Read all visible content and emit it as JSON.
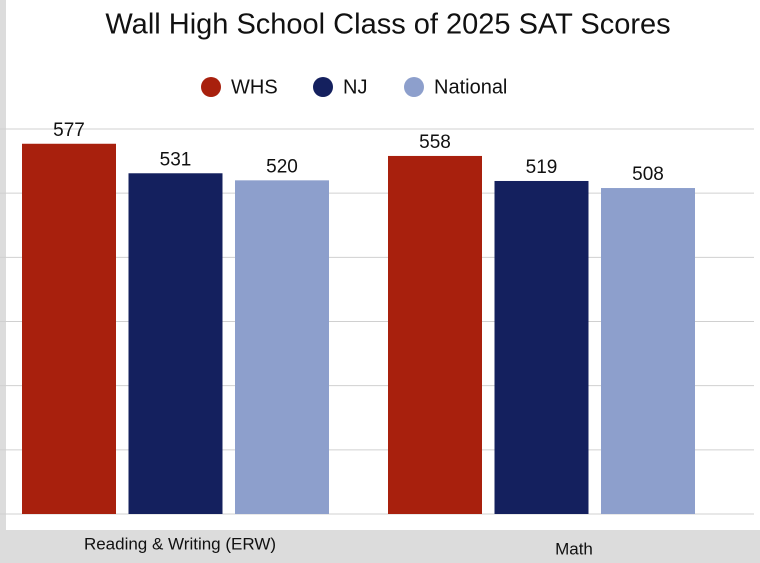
{
  "chart_data": {
    "type": "bar",
    "title": "Wall High School Class of 2025 SAT Scores",
    "categories": [
      "Reading & Writing (ERW)",
      "Math"
    ],
    "series": [
      {
        "name": "WHS",
        "color": "#a8200d",
        "values": [
          577,
          558
        ]
      },
      {
        "name": "NJ",
        "color": "#14205e",
        "values": [
          531,
          519
        ]
      },
      {
        "name": "National",
        "color": "#8d9fcc",
        "values": [
          520,
          508
        ]
      }
    ],
    "ylim": [
      0,
      600
    ],
    "yticks": [
      0,
      100,
      200,
      300,
      400,
      500,
      600
    ],
    "grid": true,
    "legend": "top"
  }
}
